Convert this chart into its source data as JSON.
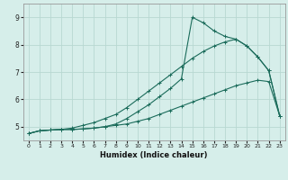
{
  "xlabel": "Humidex (Indice chaleur)",
  "bg_color": "#d6eeea",
  "grid_color": "#b8d8d2",
  "line_color": "#1a6b5a",
  "xlim": [
    -0.5,
    23.5
  ],
  "ylim": [
    4.5,
    9.5
  ],
  "xticks": [
    0,
    1,
    2,
    3,
    4,
    5,
    6,
    7,
    8,
    9,
    10,
    11,
    12,
    13,
    14,
    15,
    16,
    17,
    18,
    19,
    20,
    21,
    22,
    23
  ],
  "yticks": [
    5,
    6,
    7,
    8,
    9
  ],
  "line1_x": [
    0,
    1,
    2,
    3,
    4,
    5,
    6,
    7,
    8,
    9,
    10,
    11,
    12,
    13,
    14,
    15,
    16,
    17,
    18,
    19,
    20,
    21,
    22,
    23
  ],
  "line1_y": [
    4.75,
    4.85,
    4.88,
    4.9,
    4.9,
    4.92,
    4.95,
    5.0,
    5.05,
    5.1,
    5.2,
    5.3,
    5.45,
    5.6,
    5.75,
    5.9,
    6.05,
    6.2,
    6.35,
    6.5,
    6.6,
    6.7,
    6.65,
    5.4
  ],
  "line2_x": [
    0,
    1,
    2,
    3,
    4,
    5,
    6,
    7,
    8,
    9,
    10,
    11,
    12,
    13,
    14,
    15,
    16,
    17,
    18,
    19,
    20,
    21,
    22,
    23
  ],
  "line2_y": [
    4.75,
    4.85,
    4.88,
    4.9,
    4.95,
    5.05,
    5.15,
    5.3,
    5.45,
    5.7,
    6.0,
    6.3,
    6.6,
    6.9,
    7.2,
    7.5,
    7.75,
    7.95,
    8.1,
    8.2,
    7.95,
    7.55,
    7.05,
    5.4
  ],
  "line3_x": [
    0,
    1,
    2,
    3,
    4,
    5,
    6,
    7,
    8,
    9,
    10,
    11,
    12,
    13,
    14,
    15,
    16,
    17,
    18,
    19,
    20,
    21,
    22,
    23
  ],
  "line3_y": [
    4.75,
    4.85,
    4.88,
    4.9,
    4.9,
    4.92,
    4.95,
    5.0,
    5.1,
    5.3,
    5.55,
    5.8,
    6.1,
    6.4,
    6.75,
    9.0,
    8.8,
    8.5,
    8.3,
    8.2,
    7.95,
    7.55,
    7.05,
    5.4
  ]
}
